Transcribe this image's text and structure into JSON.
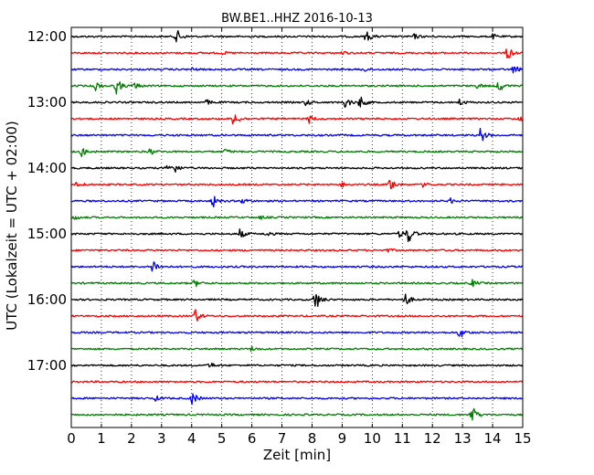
{
  "chart_data": {
    "type": "line",
    "title": "BW.BE1..HHZ 2016-10-13",
    "xlabel": "Zeit  [min]",
    "ylabel": "UTC (Lokalzeit = UTC + 02:00)",
    "xlim": [
      0,
      15
    ],
    "x_ticks": [
      "0",
      "1",
      "2",
      "3",
      "4",
      "5",
      "6",
      "7",
      "8",
      "9",
      "10",
      "11",
      "12",
      "13",
      "14",
      "15"
    ],
    "y_ticks": [
      "12:00",
      "13:00",
      "14:00",
      "15:00",
      "16:00",
      "17:00"
    ],
    "row_interval_min": 15,
    "grid": "vertical dotted",
    "colors": [
      "#000000",
      "#ff0000",
      "#0000ff",
      "#008000"
    ],
    "series": [
      {
        "start": "12:00",
        "events": [
          [
            3.5,
            0.9
          ],
          [
            9.8,
            0.7
          ],
          [
            11.4,
            0.3
          ],
          [
            14.0,
            0.3
          ]
        ]
      },
      {
        "start": "12:15",
        "events": [
          [
            14.5,
            1.0
          ],
          [
            5.0,
            0.2
          ],
          [
            9.0,
            0.2
          ]
        ]
      },
      {
        "start": "12:30",
        "events": [
          [
            14.7,
            0.6
          ],
          [
            4.0,
            0.2
          ],
          [
            9.7,
            0.3
          ]
        ]
      },
      {
        "start": "12:45",
        "events": [
          [
            0.8,
            0.6
          ],
          [
            1.5,
            1.0
          ],
          [
            2.1,
            0.4
          ],
          [
            13.5,
            0.3
          ],
          [
            14.2,
            0.8
          ]
        ]
      },
      {
        "start": "13:00",
        "events": [
          [
            4.5,
            0.3
          ],
          [
            7.8,
            0.4
          ],
          [
            9.1,
            0.8
          ],
          [
            9.6,
            0.8
          ],
          [
            12.9,
            0.4
          ]
        ]
      },
      {
        "start": "13:15",
        "events": [
          [
            5.4,
            1.0
          ],
          [
            7.9,
            0.5
          ],
          [
            14.9,
            0.4
          ]
        ]
      },
      {
        "start": "13:30",
        "events": [
          [
            13.6,
            1.0
          ]
        ]
      },
      {
        "start": "13:45",
        "events": [
          [
            0.35,
            0.6
          ],
          [
            2.6,
            0.4
          ],
          [
            5.1,
            0.3
          ]
        ]
      },
      {
        "start": "14:00",
        "events": [
          [
            3.2,
            0.6
          ],
          [
            3.4,
            0.6
          ]
        ]
      },
      {
        "start": "14:15",
        "events": [
          [
            0.2,
            0.4
          ],
          [
            10.6,
            1.0
          ],
          [
            9.0,
            0.3
          ],
          [
            11.7,
            0.3
          ]
        ]
      },
      {
        "start": "14:30",
        "events": [
          [
            4.7,
            0.8
          ],
          [
            5.7,
            0.4
          ],
          [
            12.6,
            0.3
          ]
        ]
      },
      {
        "start": "14:45",
        "events": [
          [
            0.1,
            0.3
          ],
          [
            6.3,
            0.2
          ]
        ]
      },
      {
        "start": "15:00",
        "events": [
          [
            11.2,
            1.2
          ],
          [
            5.6,
            0.6
          ],
          [
            6.5,
            0.4
          ],
          [
            10.9,
            0.5
          ]
        ]
      },
      {
        "start": "15:15",
        "events": [
          [
            10.5,
            0.2
          ]
        ]
      },
      {
        "start": "15:30",
        "events": [
          [
            2.7,
            1.0
          ]
        ]
      },
      {
        "start": "15:45",
        "events": [
          [
            4.1,
            0.5
          ],
          [
            13.3,
            0.5
          ]
        ]
      },
      {
        "start": "16:00",
        "events": [
          [
            8.1,
            1.5
          ],
          [
            11.1,
            0.8
          ]
        ]
      },
      {
        "start": "16:15",
        "events": [
          [
            4.1,
            1.0
          ]
        ]
      },
      {
        "start": "16:30",
        "events": [
          [
            12.9,
            0.8
          ]
        ]
      },
      {
        "start": "16:45",
        "events": [
          [
            6.0,
            0.3
          ]
        ]
      },
      {
        "start": "17:00",
        "events": [
          [
            4.6,
            0.4
          ]
        ]
      },
      {
        "start": "17:15",
        "events": []
      },
      {
        "start": "17:30",
        "events": [
          [
            4.0,
            0.9
          ],
          [
            2.8,
            0.3
          ]
        ]
      },
      {
        "start": "17:45",
        "events": [
          [
            13.3,
            1.3
          ]
        ]
      }
    ]
  }
}
